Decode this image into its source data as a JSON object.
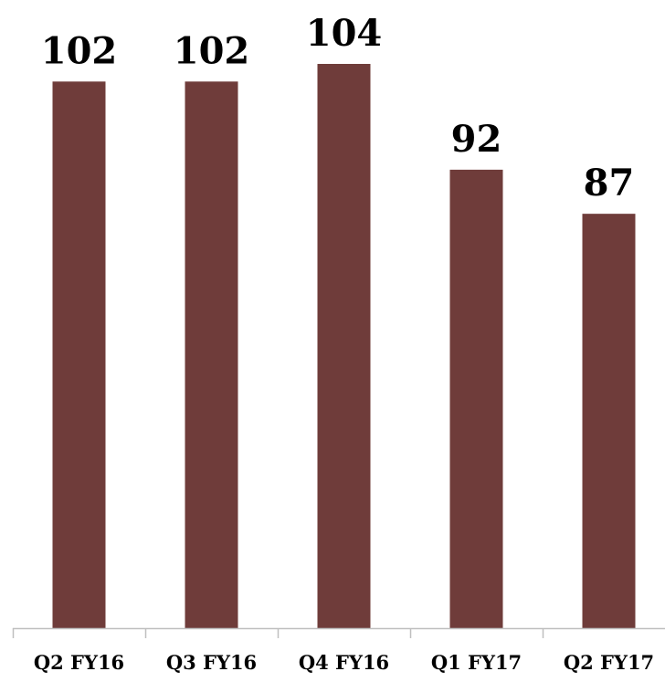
{
  "chart_data": {
    "type": "bar",
    "categories": [
      "Q2 FY16",
      "Q3 FY16",
      "Q4 FY16",
      "Q1 FY17",
      "Q2 FY17"
    ],
    "values": [
      102,
      102,
      104,
      92,
      87
    ],
    "data_labels": [
      "102",
      "102",
      "104",
      "92",
      "87"
    ],
    "ylim": [
      40,
      104
    ],
    "grid": false,
    "legend": "none",
    "colors": {
      "bar": "#6f3c3a",
      "axis": "#bfbfbf",
      "text": "#000000"
    }
  }
}
